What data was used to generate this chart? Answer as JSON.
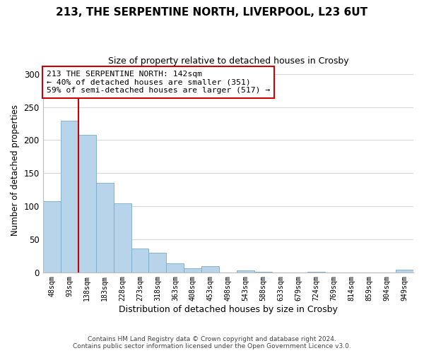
{
  "title": "213, THE SERPENTINE NORTH, LIVERPOOL, L23 6UT",
  "subtitle": "Size of property relative to detached houses in Crosby",
  "xlabel": "Distribution of detached houses by size in Crosby",
  "ylabel": "Number of detached properties",
  "bar_color": "#b8d4ea",
  "marker_line_color": "#cc0000",
  "categories": [
    "48sqm",
    "93sqm",
    "138sqm",
    "183sqm",
    "228sqm",
    "273sqm",
    "318sqm",
    "363sqm",
    "408sqm",
    "453sqm",
    "498sqm",
    "543sqm",
    "588sqm",
    "633sqm",
    "679sqm",
    "724sqm",
    "769sqm",
    "814sqm",
    "859sqm",
    "904sqm",
    "949sqm"
  ],
  "values": [
    108,
    229,
    208,
    135,
    104,
    36,
    30,
    13,
    6,
    9,
    0,
    3,
    1,
    0,
    0,
    1,
    0,
    0,
    0,
    0,
    4
  ],
  "ylim": [
    0,
    310
  ],
  "yticks": [
    0,
    50,
    100,
    150,
    200,
    250,
    300
  ],
  "marker_between": [
    1,
    2
  ],
  "annotation_title": "213 THE SERPENTINE NORTH: 142sqm",
  "annotation_line1": "← 40% of detached houses are smaller (351)",
  "annotation_line2": "59% of semi-detached houses are larger (517) →",
  "annotation_box_color": "#ffffff",
  "annotation_box_edge": "#cc0000",
  "footer_line1": "Contains HM Land Registry data © Crown copyright and database right 2024.",
  "footer_line2": "Contains public sector information licensed under the Open Government Licence v3.0.",
  "background_color": "#ffffff",
  "grid_color": "#d8d8d8"
}
